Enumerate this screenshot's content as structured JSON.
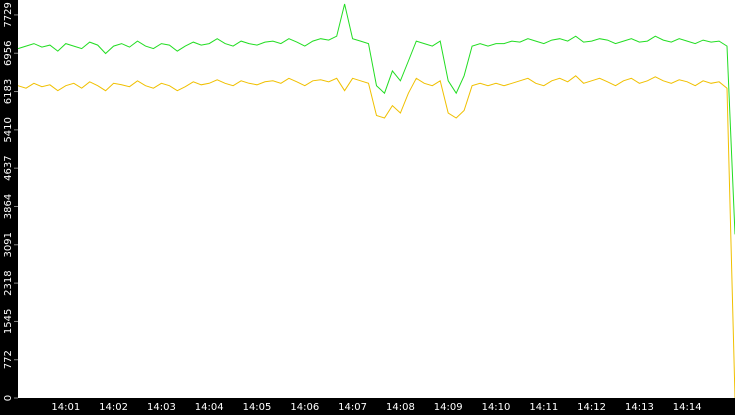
{
  "chart_data": {
    "type": "line",
    "categories": [
      null,
      null,
      null,
      null,
      null,
      null,
      "14:01",
      null,
      null,
      null,
      null,
      null,
      "14:02",
      null,
      null,
      null,
      null,
      null,
      "14:03",
      null,
      null,
      null,
      null,
      null,
      "14:04",
      null,
      null,
      null,
      null,
      null,
      "14:05",
      null,
      null,
      null,
      null,
      null,
      "14:06",
      null,
      null,
      null,
      null,
      null,
      "14:07",
      null,
      null,
      null,
      null,
      null,
      "14:08",
      null,
      null,
      null,
      null,
      null,
      "14:09",
      null,
      null,
      null,
      null,
      null,
      "14:10",
      null,
      null,
      null,
      null,
      null,
      "14:11",
      null,
      null,
      null,
      null,
      null,
      "14:12",
      null,
      null,
      null,
      null,
      null,
      "14:13",
      null,
      null,
      null,
      null,
      null,
      "14:14",
      null,
      null,
      null,
      null,
      null,
      null
    ],
    "series": [
      {
        "color": "#22dd22",
        "values": [
          7050,
          7100,
          7150,
          7080,
          7120,
          7000,
          7150,
          7100,
          7050,
          7180,
          7120,
          6950,
          7100,
          7150,
          7080,
          7200,
          7100,
          7050,
          7150,
          7120,
          7000,
          7100,
          7180,
          7120,
          7150,
          7250,
          7150,
          7100,
          7200,
          7150,
          7120,
          7180,
          7200,
          7150,
          7250,
          7180,
          7100,
          7200,
          7250,
          7220,
          7300,
          7950,
          7250,
          7200,
          7150,
          6300,
          6150,
          6600,
          6400,
          6800,
          7200,
          7150,
          7100,
          7200,
          6400,
          6150,
          6500,
          7100,
          7150,
          7100,
          7150,
          7150,
          7200,
          7180,
          7250,
          7200,
          7150,
          7220,
          7250,
          7200,
          7300,
          7180,
          7200,
          7250,
          7220,
          7150,
          7200,
          7250,
          7180,
          7200,
          7300,
          7220,
          7180,
          7250,
          7200,
          7150,
          7220,
          7180,
          7200,
          7100,
          3300
        ]
      },
      {
        "color": "#f0c000",
        "values": [
          6300,
          6250,
          6350,
          6280,
          6320,
          6200,
          6300,
          6350,
          6250,
          6380,
          6300,
          6200,
          6350,
          6320,
          6280,
          6400,
          6300,
          6250,
          6350,
          6300,
          6200,
          6280,
          6380,
          6320,
          6350,
          6420,
          6350,
          6300,
          6400,
          6350,
          6320,
          6380,
          6400,
          6350,
          6450,
          6380,
          6300,
          6400,
          6420,
          6380,
          6450,
          6200,
          6450,
          6400,
          6350,
          5700,
          5650,
          5900,
          5750,
          6150,
          6450,
          6350,
          6300,
          6400,
          5750,
          5650,
          5800,
          6300,
          6350,
          6300,
          6350,
          6300,
          6350,
          6400,
          6450,
          6350,
          6300,
          6400,
          6450,
          6380,
          6500,
          6350,
          6400,
          6450,
          6380,
          6300,
          6400,
          6450,
          6350,
          6400,
          6480,
          6400,
          6350,
          6420,
          6380,
          6300,
          6400,
          6350,
          6380,
          6250,
          0
        ]
      }
    ],
    "ylim": [
      0,
      8030
    ],
    "yticks": [
      0,
      772,
      1545,
      2318,
      3091,
      3864,
      4637,
      5410,
      6183,
      6956,
      7729
    ]
  }
}
